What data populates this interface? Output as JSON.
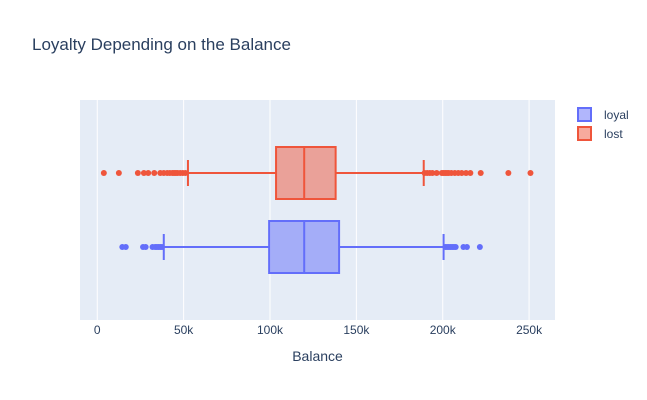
{
  "chart_data": {
    "type": "box",
    "orientation": "horizontal",
    "title": "Loyalty Depending on the Balance",
    "xlabel": "Balance",
    "ylabel": "",
    "xlim": [
      -10000,
      265000
    ],
    "xticks": [
      {
        "value": 0,
        "label": "0"
      },
      {
        "value": 50000,
        "label": "50k"
      },
      {
        "value": 100000,
        "label": "100k"
      },
      {
        "value": 150000,
        "label": "150k"
      },
      {
        "value": 200000,
        "label": "200k"
      },
      {
        "value": 250000,
        "label": "250k"
      }
    ],
    "grid": true,
    "legend_position": "top-right",
    "series": [
      {
        "name": "loyal",
        "color": "#636efa",
        "fill": "rgba(99,110,250,0.5)",
        "lower_fence": 38500,
        "q1": 99500,
        "median": 119800,
        "q3": 140000,
        "upper_fence": 200500,
        "outliers": [
          14500,
          16500,
          26500,
          28000,
          32000,
          33500,
          34500,
          35500,
          36500,
          37500,
          201500,
          202500,
          203500,
          204500,
          205500,
          206500,
          207500,
          212000,
          214000,
          221500
        ]
      },
      {
        "name": "lost",
        "color": "#ef553b",
        "fill": "rgba(239,85,59,0.5)",
        "lower_fence": 52500,
        "q1": 103500,
        "median": 119800,
        "q3": 138000,
        "upper_fence": 189000,
        "outliers": [
          3800,
          12500,
          23500,
          27000,
          29500,
          33000,
          36500,
          38500,
          40500,
          42000,
          43500,
          44500,
          45500,
          46500,
          48000,
          49500,
          51000,
          189500,
          191000,
          192500,
          194000,
          196500,
          199500,
          200500,
          201500,
          202500,
          203500,
          205000,
          207000,
          209000,
          211000,
          213500,
          216000,
          222000,
          238000,
          250800
        ]
      }
    ]
  }
}
